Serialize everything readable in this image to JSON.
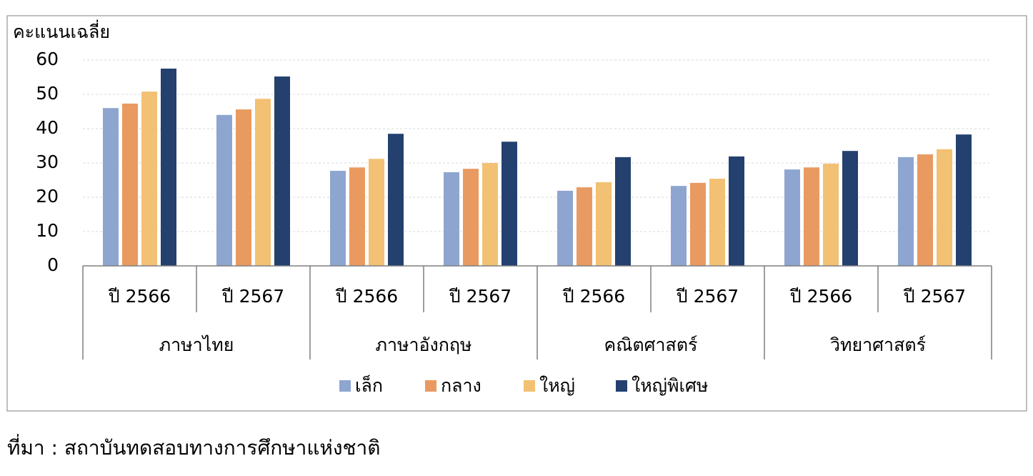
{
  "chart_data": {
    "type": "bar",
    "y_label": "คะแนนเฉลี่ย",
    "categories": [
      "ปี 2566",
      "ปี 2567",
      "ปี 2566",
      "ปี 2567",
      "ปี 2566",
      "ปี 2567",
      "ปี 2566",
      "ปี 2567"
    ],
    "groups": [
      "ภาษาไทย",
      "ภาษาอังกฤษ",
      "คณิตศาสตร์",
      "วิทยาศาสตร์"
    ],
    "series": [
      {
        "name": "เล็ก",
        "color": "#8ea5cf",
        "values": [
          46.0,
          44.0,
          27.7,
          27.3,
          21.9,
          23.3,
          28.1,
          31.7
        ]
      },
      {
        "name": "กลาง",
        "color": "#e99a60",
        "values": [
          47.3,
          45.6,
          28.7,
          28.3,
          22.9,
          24.2,
          28.7,
          32.5
        ]
      },
      {
        "name": "ใหญ่",
        "color": "#f2c173",
        "values": [
          50.8,
          48.7,
          31.2,
          30.0,
          24.4,
          25.4,
          29.8,
          34.0
        ]
      },
      {
        "name": "ใหญ่พิเศษ",
        "color": "#23406f",
        "values": [
          57.5,
          55.2,
          38.5,
          36.2,
          31.7,
          31.9,
          33.5,
          38.3
        ]
      }
    ],
    "ylim": [
      0,
      60
    ],
    "yticks": [
      0,
      10,
      20,
      30,
      40,
      50,
      60
    ],
    "grid": true,
    "legend": "bottom",
    "source": "ที่มา :  สถาบันทดสอบทางการศึกษาแห่งชาติ"
  }
}
